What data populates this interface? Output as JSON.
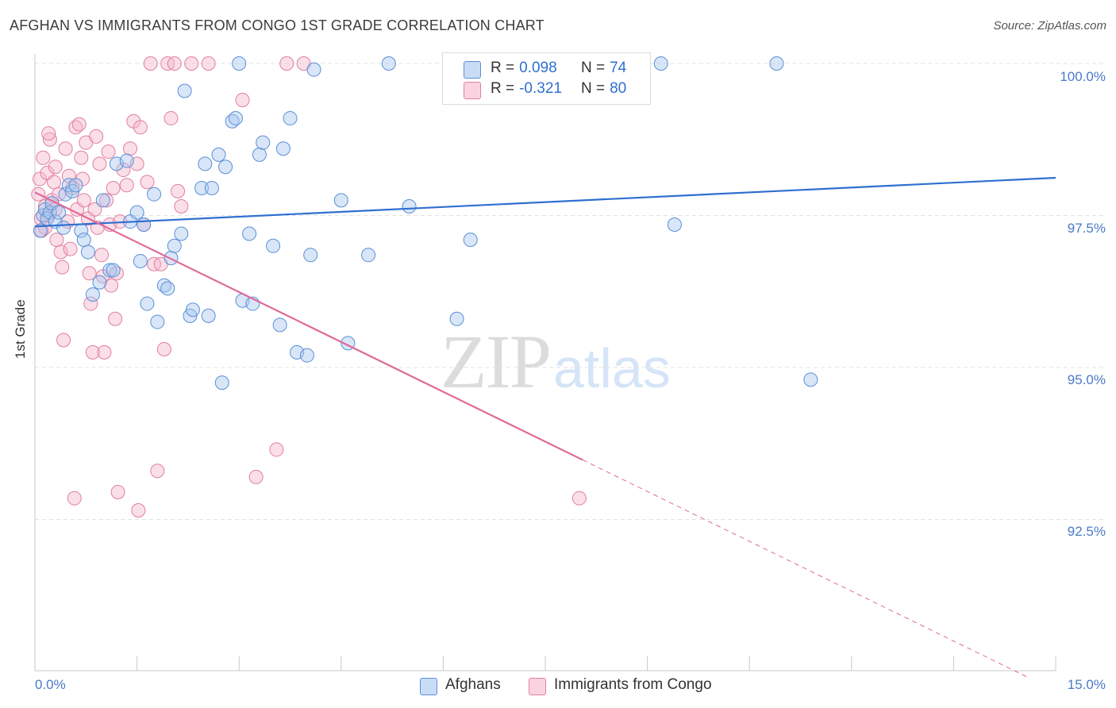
{
  "header": {
    "title": "AFGHAN VS IMMIGRANTS FROM CONGO 1ST GRADE CORRELATION CHART",
    "source": "Source: ZipAtlas.com"
  },
  "watermark": {
    "zip": "ZIP",
    "atlas": "atlas"
  },
  "stats": {
    "afghans": {
      "r_label": "R =",
      "r_value": "0.098",
      "n_label": "N =",
      "n_value": "74",
      "color": "#a9c8f0"
    },
    "congo": {
      "r_label": "R =",
      "r_value": "-0.321",
      "n_label": "N =",
      "n_value": "80",
      "color": "#f6b8cc"
    }
  },
  "legend": {
    "afghans": "Afghans",
    "congo": "Immigrants from Congo"
  },
  "colors": {
    "blue_fill": "#a9c8f0",
    "blue_stroke": "#5b8fd6",
    "blue_line": "#2f6fd0",
    "pink_fill": "#f6b8cc",
    "pink_stroke": "#e07fa0",
    "pink_line": "#e06a98",
    "grid": "#e2e2e2",
    "tick_text": "#4a7ac8"
  },
  "chart_data": {
    "type": "scatter",
    "title": "AFGHAN VS IMMIGRANTS FROM CONGO 1ST GRADE CORRELATION CHART",
    "ylabel": "1st Grade",
    "xlim": [
      0,
      15
    ],
    "ylim": [
      89.8,
      100.5
    ],
    "x_tick_labels": [
      "0.0%",
      "15.0%"
    ],
    "y_ticks": [
      92.5,
      95.0,
      97.5,
      100.0
    ],
    "y_tick_labels": [
      "92.5%",
      "95.0%",
      "97.5%",
      "100.0%"
    ],
    "grid": true,
    "series": [
      {
        "name": "Afghans",
        "r": 0.098,
        "n": 74,
        "trend": {
          "x": [
            0,
            15
          ],
          "y": [
            97.32,
            98.12
          ]
        },
        "points": [
          [
            0.08,
            97.25
          ],
          [
            0.12,
            97.5
          ],
          [
            0.15,
            97.6
          ],
          [
            0.18,
            97.45
          ],
          [
            0.22,
            97.55
          ],
          [
            0.25,
            97.7
          ],
          [
            0.3,
            97.4
          ],
          [
            0.35,
            97.55
          ],
          [
            0.42,
            97.3
          ],
          [
            0.45,
            97.85
          ],
          [
            0.5,
            98.0
          ],
          [
            0.55,
            97.9
          ],
          [
            0.6,
            98.0
          ],
          [
            0.68,
            97.25
          ],
          [
            0.72,
            97.1
          ],
          [
            0.78,
            96.9
          ],
          [
            0.85,
            96.2
          ],
          [
            0.95,
            96.4
          ],
          [
            1.0,
            97.75
          ],
          [
            1.1,
            96.6
          ],
          [
            1.15,
            96.6
          ],
          [
            1.2,
            98.35
          ],
          [
            1.35,
            98.4
          ],
          [
            1.4,
            97.4
          ],
          [
            1.5,
            97.55
          ],
          [
            1.55,
            96.75
          ],
          [
            1.6,
            97.35
          ],
          [
            1.65,
            96.05
          ],
          [
            1.75,
            97.85
          ],
          [
            1.8,
            95.75
          ],
          [
            1.9,
            96.35
          ],
          [
            1.95,
            96.3
          ],
          [
            2.0,
            96.8
          ],
          [
            2.05,
            97.0
          ],
          [
            2.15,
            97.2
          ],
          [
            2.2,
            99.55
          ],
          [
            2.28,
            95.85
          ],
          [
            2.32,
            95.95
          ],
          [
            2.45,
            97.95
          ],
          [
            2.5,
            98.35
          ],
          [
            2.55,
            95.85
          ],
          [
            2.6,
            97.95
          ],
          [
            2.7,
            98.5
          ],
          [
            2.75,
            94.75
          ],
          [
            2.8,
            98.3
          ],
          [
            2.9,
            99.05
          ],
          [
            2.95,
            99.1
          ],
          [
            3.0,
            100.0
          ],
          [
            3.05,
            96.1
          ],
          [
            3.15,
            97.2
          ],
          [
            3.2,
            96.05
          ],
          [
            3.3,
            98.5
          ],
          [
            3.35,
            98.7
          ],
          [
            3.5,
            97.0
          ],
          [
            3.6,
            95.7
          ],
          [
            3.65,
            98.6
          ],
          [
            3.75,
            99.1
          ],
          [
            3.85,
            95.25
          ],
          [
            4.0,
            95.2
          ],
          [
            4.05,
            96.85
          ],
          [
            4.1,
            99.9
          ],
          [
            4.5,
            97.75
          ],
          [
            4.6,
            95.4
          ],
          [
            4.9,
            96.85
          ],
          [
            5.2,
            100.0
          ],
          [
            5.5,
            97.65
          ],
          [
            6.2,
            95.8
          ],
          [
            6.4,
            97.1
          ],
          [
            7.0,
            100.0
          ],
          [
            8.0,
            100.0
          ],
          [
            9.2,
            100.0
          ],
          [
            9.4,
            97.35
          ],
          [
            10.9,
            100.0
          ],
          [
            11.4,
            94.8
          ]
        ]
      },
      {
        "name": "Immigrants from Congo",
        "r": -0.321,
        "n": 80,
        "trend": {
          "x": [
            0,
            8.05
          ],
          "y": [
            97.88,
            93.48
          ]
        },
        "trend_dashed": {
          "x": [
            8.05,
            14.6
          ],
          "y": [
            93.48,
            89.9
          ]
        },
        "points": [
          [
            0.05,
            97.85
          ],
          [
            0.07,
            98.1
          ],
          [
            0.09,
            97.45
          ],
          [
            0.1,
            97.25
          ],
          [
            0.12,
            98.45
          ],
          [
            0.15,
            97.65
          ],
          [
            0.18,
            98.2
          ],
          [
            0.2,
            97.5
          ],
          [
            0.22,
            98.75
          ],
          [
            0.25,
            97.75
          ],
          [
            0.28,
            98.05
          ],
          [
            0.3,
            97.6
          ],
          [
            0.32,
            97.1
          ],
          [
            0.35,
            97.85
          ],
          [
            0.38,
            96.9
          ],
          [
            0.4,
            96.65
          ],
          [
            0.42,
            95.45
          ],
          [
            0.45,
            98.6
          ],
          [
            0.48,
            97.4
          ],
          [
            0.5,
            98.15
          ],
          [
            0.52,
            96.95
          ],
          [
            0.55,
            97.95
          ],
          [
            0.58,
            92.85
          ],
          [
            0.6,
            98.95
          ],
          [
            0.62,
            97.6
          ],
          [
            0.65,
            99.0
          ],
          [
            0.68,
            98.45
          ],
          [
            0.7,
            98.1
          ],
          [
            0.72,
            97.75
          ],
          [
            0.75,
            98.7
          ],
          [
            0.78,
            97.45
          ],
          [
            0.8,
            96.55
          ],
          [
            0.82,
            96.05
          ],
          [
            0.85,
            95.25
          ],
          [
            0.88,
            97.6
          ],
          [
            0.9,
            98.8
          ],
          [
            0.92,
            97.3
          ],
          [
            0.95,
            98.35
          ],
          [
            0.98,
            96.85
          ],
          [
            1.0,
            96.5
          ],
          [
            1.02,
            95.25
          ],
          [
            1.05,
            97.75
          ],
          [
            1.08,
            98.55
          ],
          [
            1.1,
            97.35
          ],
          [
            1.12,
            96.35
          ],
          [
            1.15,
            97.95
          ],
          [
            1.18,
            95.8
          ],
          [
            1.2,
            96.55
          ],
          [
            1.22,
            92.95
          ],
          [
            1.25,
            97.4
          ],
          [
            1.3,
            98.25
          ],
          [
            1.35,
            98.0
          ],
          [
            1.4,
            98.6
          ],
          [
            1.45,
            99.05
          ],
          [
            1.5,
            98.35
          ],
          [
            1.52,
            92.65
          ],
          [
            1.55,
            98.95
          ],
          [
            1.6,
            97.35
          ],
          [
            1.65,
            98.05
          ],
          [
            1.7,
            100.0
          ],
          [
            1.75,
            96.7
          ],
          [
            1.8,
            93.3
          ],
          [
            1.85,
            96.7
          ],
          [
            1.9,
            95.3
          ],
          [
            1.95,
            100.0
          ],
          [
            2.0,
            99.1
          ],
          [
            2.05,
            100.0
          ],
          [
            2.1,
            97.9
          ],
          [
            2.15,
            97.65
          ],
          [
            0.15,
            97.3
          ],
          [
            0.2,
            98.85
          ],
          [
            0.3,
            98.3
          ],
          [
            2.3,
            100.0
          ],
          [
            2.55,
            100.0
          ],
          [
            3.05,
            99.4
          ],
          [
            3.25,
            93.2
          ],
          [
            3.55,
            93.65
          ],
          [
            3.7,
            100.0
          ],
          [
            3.95,
            100.0
          ],
          [
            8.0,
            92.85
          ]
        ]
      }
    ]
  }
}
